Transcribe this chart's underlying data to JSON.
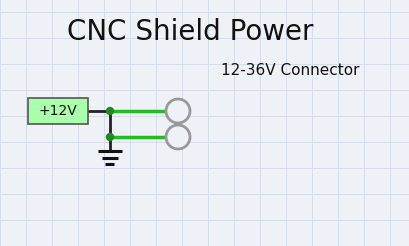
{
  "title": "CNC Shield Power",
  "title_fontsize": 20,
  "connector_label": "12-36V Connector",
  "connector_label_fontsize": 11,
  "bg_color": "#eef1f6",
  "grid_color": "#d5dde8",
  "wire_green": "#22bb22",
  "wire_dark": "#222222",
  "ground_color": "#111111",
  "box_fill": "#aaffaa",
  "box_edge": "#555555",
  "label_text": "+12V",
  "label_fontsize": 10,
  "node_dot_color": "#228822",
  "circle_edge_color": "#999999",
  "circle_fill": "#eef1f6",
  "grid_step": 26
}
